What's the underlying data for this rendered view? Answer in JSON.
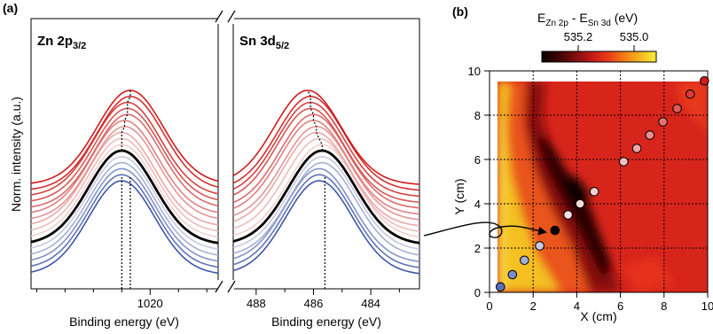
{
  "panel_labels": {
    "a": "(a)",
    "b": "(b)"
  },
  "colorbar": {
    "title_main_1": "E",
    "title_sub_1": "Zn 2p",
    "title_mid": " - E",
    "title_sub_2": "Sn 3d",
    "title_tail": " (eV)",
    "tick_labels": [
      "535.2",
      "535.0"
    ],
    "colors": [
      "#0a0000",
      "#3a0606",
      "#7a0f0f",
      "#c01818",
      "#e8381b",
      "#f27a18",
      "#f7b51e",
      "#faf03a"
    ]
  },
  "chart_data": [
    {
      "type": "line",
      "panel": "a-left",
      "title": "Zn 2p3/2",
      "title_main": "Zn 2p",
      "title_sub": "3/2",
      "xlabel": "Binding energy (eV)",
      "ylabel": "Norm. intensity (a.u.)",
      "x_reversed": true,
      "xlim": [
        1024.2,
        1017.6
      ],
      "x_tick_labels": [
        {
          "value": 1020,
          "label": "1020"
        }
      ],
      "peak_positions_eV": [
        1021.0,
        1021.0,
        1021.0,
        1021.0,
        1021.0,
        1021.0,
        1021.0,
        1021.0,
        1021.0,
        1020.9,
        1020.9,
        1020.8,
        1020.8,
        1020.8,
        1020.7,
        1020.7
      ],
      "series_colors": [
        "#3e58a8",
        "#6174b6",
        "#8593c6",
        "#a5b0d4",
        "#c4c9e2",
        "#000000",
        "#f3cfcf",
        "#efbcbc",
        "#eaa8a8",
        "#e59494",
        "#e08080",
        "#dc6b6b",
        "#d85656",
        "#d54242",
        "#d22f2f",
        "#d01c1c"
      ],
      "reference_lines": [
        1021.0,
        1020.7
      ]
    },
    {
      "type": "line",
      "panel": "a-right",
      "title": "Sn 3d5/2",
      "title_main": "Sn 3d",
      "title_sub": "5/2",
      "xlabel": "Binding energy (eV)",
      "x_reversed": true,
      "xlim": [
        488.8,
        482.3
      ],
      "x_tick_labels": [
        {
          "value": 488,
          "label": "488"
        },
        {
          "value": 486,
          "label": "486"
        },
        {
          "value": 484,
          "label": "484"
        }
      ],
      "peak_positions_eV": [
        485.8,
        485.8,
        485.8,
        485.7,
        485.7,
        485.7,
        485.7,
        485.8,
        485.9,
        485.9,
        486.0,
        486.0,
        486.1,
        486.1,
        486.1,
        486.2
      ],
      "series_colors": [
        "#3e58a8",
        "#6174b6",
        "#8593c6",
        "#a5b0d4",
        "#c4c9e2",
        "#000000",
        "#f3cfcf",
        "#efbcbc",
        "#eaa8a8",
        "#e59494",
        "#e08080",
        "#dc6b6b",
        "#d85656",
        "#d54242",
        "#d22f2f",
        "#d01c1c"
      ],
      "reference_lines": [
        485.6
      ]
    },
    {
      "type": "heatmap",
      "panel": "b",
      "xlabel": "X (cm)",
      "ylabel": "Y (cm)",
      "xlim": [
        0,
        10
      ],
      "ylim": [
        0,
        10
      ],
      "x_ticks": [
        0,
        2,
        4,
        6,
        8,
        10
      ],
      "y_ticks": [
        0,
        2,
        4,
        6,
        8,
        10
      ],
      "grid": "dotted",
      "points": [
        {
          "x": 0.5,
          "y": 0.25,
          "color": "#5a6fc0"
        },
        {
          "x": 1.05,
          "y": 0.8,
          "color": "#7c8dcd"
        },
        {
          "x": 1.6,
          "y": 1.45,
          "color": "#a4aedb"
        },
        {
          "x": 2.3,
          "y": 2.1,
          "color": "#c6cbe8"
        },
        {
          "x": 3.0,
          "y": 2.8,
          "color": "#000000"
        },
        {
          "x": 3.6,
          "y": 3.5,
          "color": "#f7e1e1"
        },
        {
          "x": 4.15,
          "y": 4.0,
          "color": "#f6dada"
        },
        {
          "x": 4.8,
          "y": 4.55,
          "color": "#f4cfcf"
        },
        {
          "x": 6.15,
          "y": 5.9,
          "color": "#f1c0c0"
        },
        {
          "x": 6.75,
          "y": 6.5,
          "color": "#eda9a9"
        },
        {
          "x": 7.35,
          "y": 7.1,
          "color": "#e98f8f"
        },
        {
          "x": 7.95,
          "y": 7.7,
          "color": "#e47474"
        },
        {
          "x": 8.6,
          "y": 8.3,
          "color": "#de5959"
        },
        {
          "x": 9.2,
          "y": 8.95,
          "color": "#d83c3c"
        },
        {
          "x": 9.85,
          "y": 9.55,
          "color": "#d01c1c"
        }
      ]
    }
  ]
}
